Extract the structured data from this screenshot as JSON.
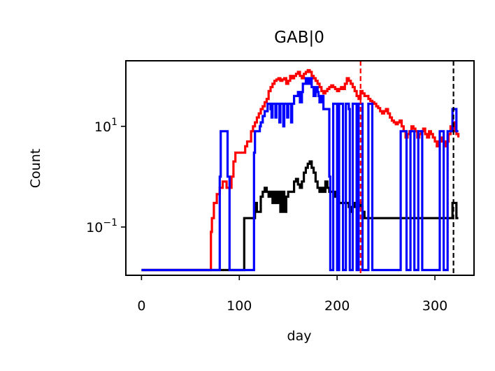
{
  "chart_data": {
    "type": "line",
    "title": "GAB|0",
    "xlabel": "day",
    "ylabel": "Count",
    "yscale": "log",
    "xlim": [
      -16,
      340
    ],
    "ylim": [
      0.011,
      200
    ],
    "xticks": [
      {
        "value": 0,
        "label": "0"
      },
      {
        "value": 100,
        "label": "100"
      },
      {
        "value": 200,
        "label": "200"
      },
      {
        "value": 300,
        "label": "300"
      }
    ],
    "yticks": [
      {
        "value": 10,
        "base": "10",
        "exp": "1"
      },
      {
        "value": 0.1,
        "base": "10",
        "exp": "−1"
      }
    ],
    "vlines": [
      {
        "x": 224,
        "color": "#ff0000",
        "style": "dashed"
      },
      {
        "x": 319,
        "color": "#000000",
        "style": "dashed"
      }
    ],
    "series": [
      {
        "name": "red",
        "color": "#ff0000",
        "x": [
          0,
          70,
          71,
          72,
          73,
          74,
          75,
          76,
          77,
          78,
          79,
          80,
          81,
          82,
          83,
          84,
          85,
          86,
          87,
          88,
          90,
          92,
          94,
          96,
          98,
          100,
          102,
          104,
          106,
          108,
          110,
          112,
          114,
          116,
          118,
          120,
          122,
          124,
          126,
          128,
          130,
          132,
          134,
          136,
          138,
          140,
          142,
          144,
          146,
          148,
          150,
          152,
          154,
          156,
          158,
          160,
          162,
          164,
          166,
          168,
          170,
          172,
          174,
          176,
          178,
          180,
          182,
          184,
          186,
          188,
          190,
          192,
          194,
          196,
          198,
          200,
          202,
          204,
          206,
          208,
          210,
          212,
          214,
          216,
          218,
          220,
          222,
          224,
          226,
          228,
          230,
          232,
          234,
          236,
          238,
          240,
          242,
          244,
          246,
          248,
          250,
          252,
          254,
          256,
          258,
          260,
          262,
          264,
          266,
          268,
          270,
          272,
          274,
          276,
          278,
          280,
          282,
          284,
          286,
          288,
          290,
          292,
          294,
          296,
          298,
          300,
          302,
          304,
          306,
          308,
          310,
          312,
          314,
          316,
          318,
          320,
          322,
          324
        ],
        "y": [
          0.014,
          0.014,
          0.08,
          0.15,
          0.15,
          0.3,
          0.3,
          0.3,
          0.45,
          0.45,
          0.45,
          0.6,
          0.6,
          0.6,
          0.8,
          0.8,
          0.8,
          0.8,
          0.6,
          0.6,
          0.6,
          1.0,
          2.0,
          3.0,
          3.0,
          3.0,
          3.0,
          3.0,
          4.0,
          5.0,
          5.0,
          8.0,
          10.0,
          12.0,
          15.0,
          18.0,
          22.0,
          25.0,
          30.0,
          35.0,
          50.0,
          60.0,
          70.0,
          80.0,
          85.0,
          90.0,
          80.0,
          85.0,
          90.0,
          70.0,
          80.0,
          100.0,
          90.0,
          100.0,
          110.0,
          120.0,
          100.0,
          90.0,
          110.0,
          120.0,
          130.0,
          120.0,
          100.0,
          90.0,
          80.0,
          70.0,
          60.0,
          50.0,
          45.0,
          50.0,
          55.0,
          60.0,
          65.0,
          60.0,
          55.0,
          50.0,
          55.0,
          60.0,
          55.0,
          70.0,
          90.0,
          80.0,
          70.0,
          60.0,
          50.0,
          40.0,
          35.0,
          50.0,
          45.0,
          40.0,
          40.0,
          35.0,
          32.0,
          30.0,
          28.0,
          25.0,
          23.0,
          20.0,
          18.0,
          20.0,
          22.0,
          18.0,
          15.0,
          13.0,
          12.0,
          11.0,
          12.0,
          13.0,
          10.0,
          8.0,
          6.0,
          7.0,
          8.0,
          10.0,
          9.0,
          8.0,
          6.0,
          7.0,
          8.0,
          9.0,
          7.0,
          6.0,
          8.0,
          7.0,
          6.0,
          5.0,
          4.0,
          5.0,
          6.0,
          5.0,
          4.0,
          5.0,
          7.0,
          10.0,
          12.0,
          8.0,
          7.0,
          6.0
        ]
      },
      {
        "name": "black",
        "color": "#000000",
        "x": [
          0,
          70,
          100,
          101,
          104,
          105,
          106,
          108,
          110,
          112,
          114,
          116,
          118,
          120,
          122,
          124,
          126,
          128,
          130,
          132,
          134,
          136,
          138,
          140,
          142,
          144,
          146,
          148,
          150,
          152,
          154,
          156,
          158,
          160,
          162,
          164,
          166,
          168,
          170,
          172,
          174,
          176,
          178,
          180,
          182,
          184,
          186,
          188,
          190,
          192,
          194,
          196,
          198,
          200,
          202,
          204,
          206,
          208,
          210,
          212,
          214,
          216,
          218,
          220,
          222,
          224,
          226,
          228,
          230,
          232,
          234,
          236,
          240,
          244,
          248,
          252,
          256,
          260,
          264,
          268,
          272,
          276,
          280,
          284,
          288,
          292,
          296,
          300,
          304,
          308,
          312,
          316,
          318,
          320,
          322,
          324
        ],
        "y": [
          0.014,
          0.014,
          0.014,
          0.014,
          0.014,
          0.15,
          0.15,
          0.15,
          0.15,
          0.15,
          0.15,
          0.3,
          0.2,
          0.2,
          0.4,
          0.5,
          0.6,
          0.5,
          0.4,
          0.5,
          0.3,
          0.5,
          0.3,
          0.5,
          0.2,
          0.5,
          0.2,
          0.4,
          0.5,
          0.5,
          0.5,
          0.8,
          0.9,
          0.7,
          0.6,
          0.8,
          1.2,
          1.5,
          1.8,
          2.0,
          1.5,
          1.2,
          0.8,
          0.6,
          0.5,
          0.6,
          0.5,
          0.8,
          0.6,
          0.5,
          0.5,
          0.4,
          0.5,
          0.4,
          0.3,
          0.3,
          0.3,
          0.3,
          0.3,
          0.25,
          0.2,
          0.25,
          0.3,
          0.2,
          0.3,
          0.25,
          0.2,
          0.15,
          0.15,
          0.15,
          0.15,
          0.15,
          0.15,
          0.15,
          0.15,
          0.15,
          0.15,
          0.15,
          0.15,
          0.15,
          0.15,
          0.15,
          0.15,
          0.15,
          0.15,
          0.15,
          0.15,
          0.15,
          0.15,
          0.15,
          0.15,
          0.15,
          0.3,
          0.3,
          0.15,
          0.15
        ]
      },
      {
        "name": "blue",
        "color": "#0000ff",
        "x": [
          0,
          77,
          79,
          80,
          81,
          86,
          87,
          88,
          90,
          92,
          93,
          94,
          114,
          115,
          116,
          120,
          121,
          122,
          124,
          125,
          126,
          128,
          129,
          130,
          132,
          133,
          134,
          136,
          137,
          138,
          140,
          141,
          142,
          144,
          145,
          146,
          148,
          149,
          150,
          152,
          153,
          154,
          156,
          157,
          158,
          160,
          161,
          162,
          164,
          165,
          166,
          168,
          169,
          170,
          172,
          173,
          174,
          176,
          177,
          178,
          180,
          181,
          182,
          184,
          185,
          186,
          188,
          189,
          190,
          192,
          193,
          194,
          196,
          197,
          198,
          200,
          201,
          202,
          204,
          205,
          206,
          208,
          209,
          210,
          212,
          213,
          214,
          216,
          217,
          218,
          220,
          221,
          222,
          224,
          225,
          226,
          228,
          229,
          230,
          232,
          233,
          234,
          236,
          237,
          238,
          240,
          246,
          252,
          258,
          264,
          265,
          266,
          270,
          271,
          272,
          274,
          275,
          276,
          278,
          279,
          280,
          282,
          283,
          284,
          286,
          287,
          288,
          290,
          296,
          302,
          304,
          305,
          306,
          308,
          309,
          310,
          312,
          313,
          314,
          316,
          318,
          320,
          322,
          324
        ],
        "y": [
          0.014,
          0.014,
          0.014,
          1.0,
          8.0,
          8.0,
          8.0,
          1.0,
          0.014,
          0.014,
          0.014,
          0.014,
          0.014,
          3.0,
          8.0,
          8.0,
          10.0,
          12.0,
          16.0,
          16.0,
          20.0,
          20.0,
          28.0,
          28.0,
          22.0,
          15.0,
          28.0,
          28.0,
          15.0,
          28.0,
          28.0,
          12.0,
          28.0,
          28.0,
          10.0,
          28.0,
          28.0,
          15.0,
          28.0,
          28.0,
          12.0,
          28.0,
          40.0,
          40.0,
          40.0,
          48.0,
          48.0,
          30.0,
          48.0,
          70.0,
          70.0,
          90.0,
          90.0,
          70.0,
          90.0,
          90.0,
          60.0,
          40.0,
          40.0,
          60.0,
          48.0,
          40.0,
          30.0,
          40.0,
          40.0,
          22.0,
          22.0,
          22.0,
          22.0,
          1.0,
          0.014,
          0.014,
          28.0,
          28.0,
          28.0,
          0.014,
          0.014,
          28.0,
          28.0,
          28.0,
          0.014,
          0.014,
          28.0,
          28.0,
          22.0,
          0.014,
          0.014,
          28.0,
          28.0,
          28.0,
          0.014,
          0.014,
          28.0,
          28.0,
          28.0,
          0.014,
          0.014,
          0.014,
          0.014,
          28.0,
          28.0,
          28.0,
          0.014,
          0.014,
          0.014,
          0.014,
          0.014,
          0.014,
          0.014,
          0.014,
          8.0,
          8.0,
          8.0,
          0.014,
          0.014,
          0.014,
          8.0,
          8.0,
          8.0,
          0.014,
          0.014,
          0.014,
          8.0,
          8.0,
          8.0,
          0.014,
          0.014,
          0.014,
          0.014,
          0.014,
          0.014,
          8.0,
          8.0,
          8.0,
          0.014,
          0.014,
          0.014,
          8.0,
          8.0,
          8.0,
          22.0,
          22.0,
          8.0,
          8.0
        ]
      }
    ]
  }
}
